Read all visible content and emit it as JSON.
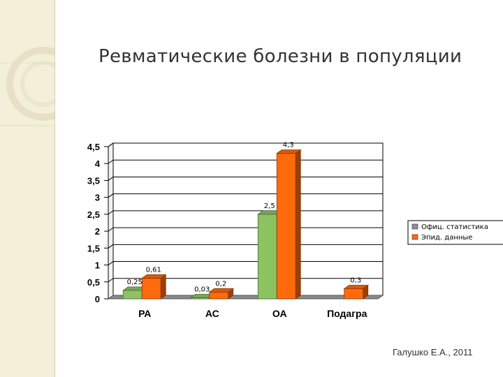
{
  "slide": {
    "title": "Ревматические болезни в популяции",
    "author": "Галушко Е.А., 2011"
  },
  "colors": {
    "green": "#8dc263",
    "orange": "#ff6a0d",
    "sidebar": "#f4efd9"
  },
  "chart_data": {
    "type": "bar",
    "categories": [
      "РА",
      "АС",
      "ОА",
      "Подагра"
    ],
    "series": [
      {
        "name": "Офиц. статистика",
        "values": [
          0.25,
          0.03,
          2.5,
          null
        ],
        "labels": [
          "0,25",
          "0,03",
          "2,5",
          ""
        ]
      },
      {
        "name": "Эпид. данные",
        "values": [
          0.61,
          0.2,
          4.3,
          0.3
        ],
        "labels": [
          "0,61",
          "0,2",
          "4,3",
          "0,3"
        ]
      }
    ],
    "yticks": [
      "0",
      "0,5",
      "1",
      "1,5",
      "2",
      "2,5",
      "3",
      "3,5",
      "4",
      "4,5"
    ],
    "ylim": [
      0,
      4.5
    ],
    "grid": true,
    "legend_position": "right",
    "style": "3d"
  }
}
